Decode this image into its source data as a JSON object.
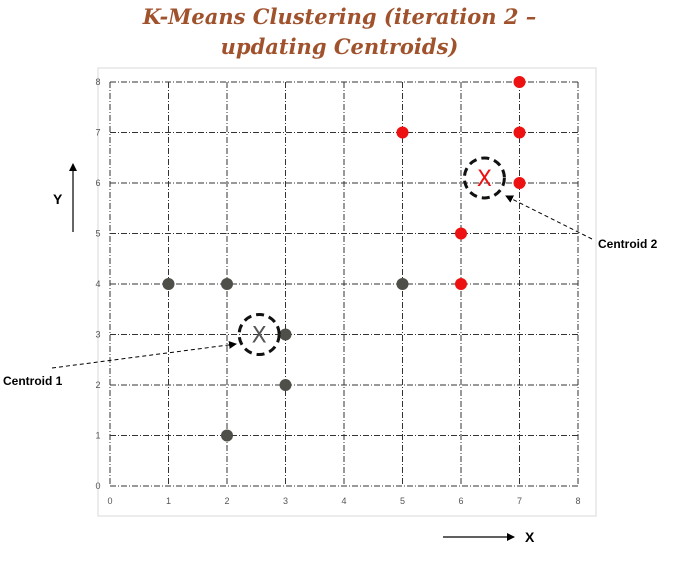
{
  "chart_data": {
    "type": "scatter",
    "title": "K-Means Clustering (iteration 2 – updating Centroids)",
    "title_line1": "K-Means Clustering (iteration 2 –",
    "title_line2": "updating Centroids)",
    "xlabel": "X",
    "ylabel": "Y",
    "xlim": [
      0,
      8
    ],
    "ylim": [
      0,
      8
    ],
    "xticks": [
      "0",
      "1",
      "2",
      "3",
      "4",
      "5",
      "6",
      "7",
      "8"
    ],
    "yticks": [
      "0",
      "1",
      "2",
      "3",
      "4",
      "5",
      "6",
      "7",
      "8"
    ],
    "grid": true,
    "series": [
      {
        "color": "#4d4f48",
        "points": [
          {
            "x": 1,
            "y": 4
          },
          {
            "x": 2,
            "y": 4
          },
          {
            "x": 5,
            "y": 4
          },
          {
            "x": 3,
            "y": 3
          },
          {
            "x": 3,
            "y": 2
          },
          {
            "x": 2,
            "y": 1
          }
        ]
      },
      {
        "color": "#ee1111",
        "points": [
          {
            "x": 7,
            "y": 8
          },
          {
            "x": 5,
            "y": 7
          },
          {
            "x": 7,
            "y": 7
          },
          {
            "x": 7,
            "y": 6
          },
          {
            "x": 6,
            "y": 5
          },
          {
            "x": 6,
            "y": 4
          }
        ]
      }
    ],
    "centroids": [
      {
        "label": "Centroid 1",
        "marker": "X",
        "x": 2.55,
        "y": 3.0,
        "color": "#555555"
      },
      {
        "label": "Centroid 2",
        "marker": "X",
        "x": 6.4,
        "y": 6.1,
        "color": "#ee1111"
      }
    ]
  }
}
